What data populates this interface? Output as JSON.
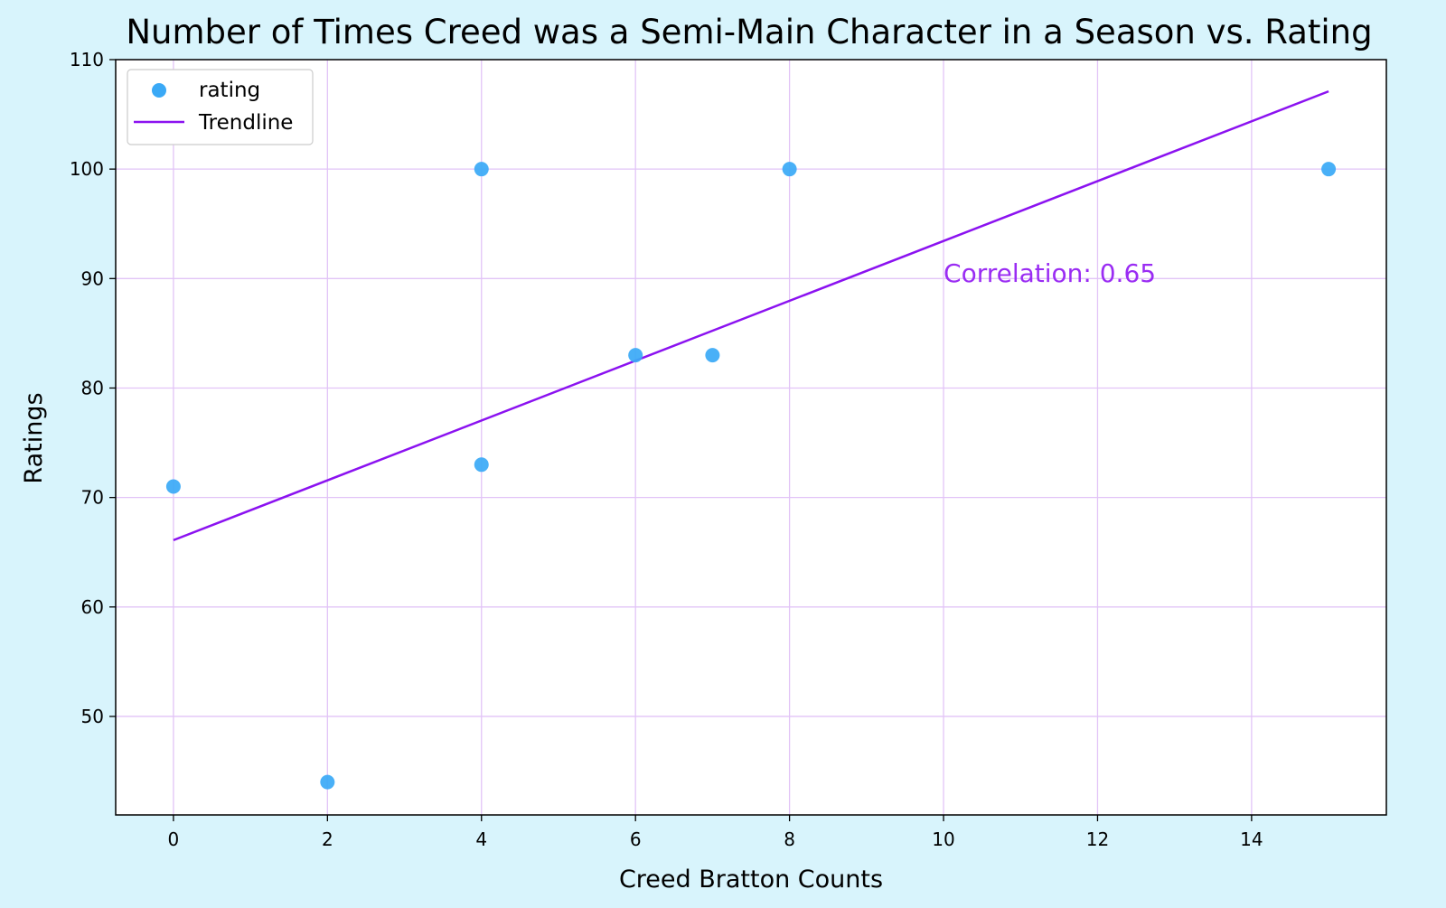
{
  "colors": {
    "figure_background": "#d8f4fc",
    "plot_background": "#ffffff",
    "grid": "#e2c4f7",
    "scatter": "#3aa9f6",
    "trendline": "#8b12f0",
    "annotation": "#9a2cf3",
    "axis": "#000000"
  },
  "chart_data": {
    "type": "scatter",
    "title": "Number of Times Creed was a Semi-Main Character in a Season vs. Rating",
    "xlabel": "Creed Bratton Counts",
    "ylabel": "Ratings",
    "xlim": [
      -0.75,
      15.75
    ],
    "ylim": [
      41,
      110
    ],
    "xticks": [
      0,
      2,
      4,
      6,
      8,
      10,
      12,
      14
    ],
    "yticks": [
      50,
      60,
      70,
      80,
      90,
      100,
      110
    ],
    "grid": true,
    "legend": {
      "placement": "upper-left",
      "entries": [
        {
          "label": "rating",
          "kind": "scatter"
        },
        {
          "label": "Trendline",
          "kind": "line"
        }
      ]
    },
    "series": [
      {
        "name": "rating",
        "kind": "scatter",
        "x": [
          0,
          2,
          4,
          4,
          6,
          7,
          8,
          15
        ],
        "y": [
          71,
          44,
          73,
          100,
          83,
          83,
          100,
          100
        ]
      },
      {
        "name": "Trendline",
        "kind": "line",
        "x": [
          0,
          15
        ],
        "y": [
          66.1,
          107.1
        ]
      }
    ],
    "annotation": {
      "text": "Correlation: 0.65",
      "x": 10,
      "y": 90.2
    }
  }
}
